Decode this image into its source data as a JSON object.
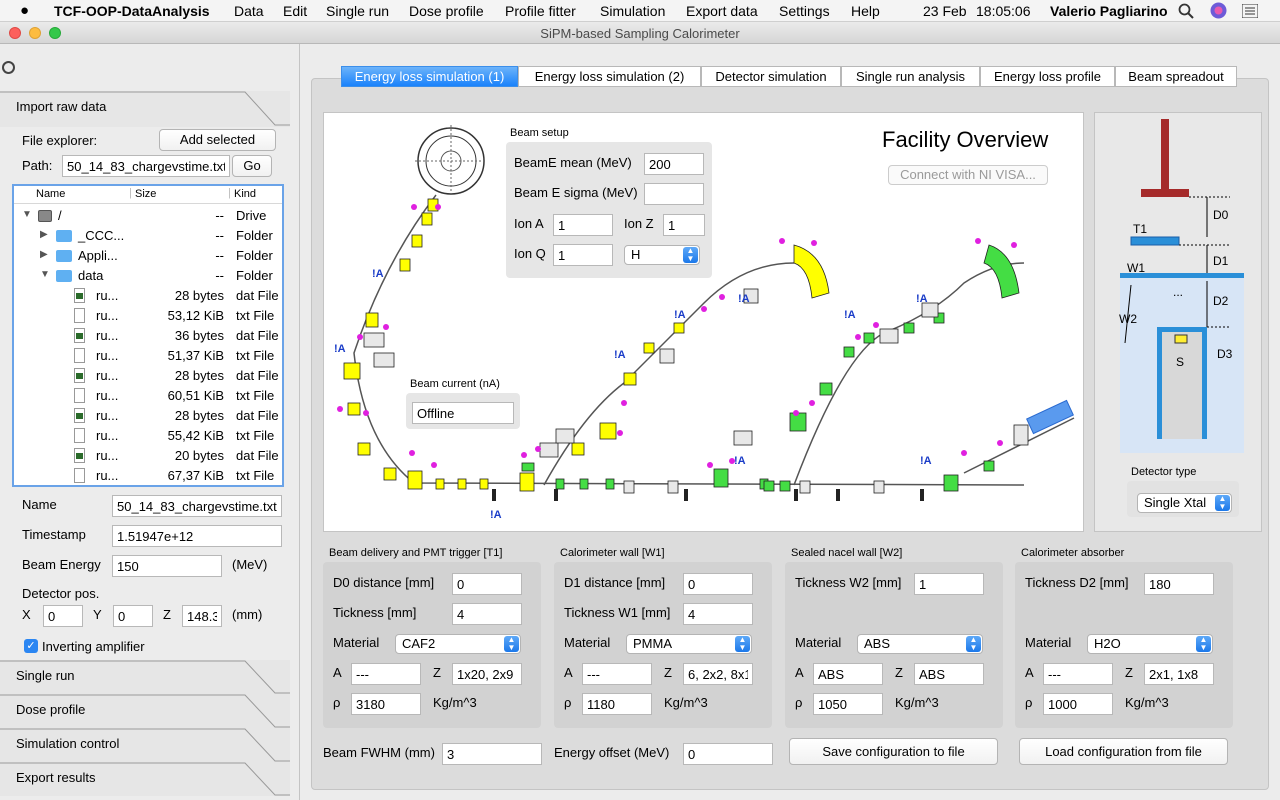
{
  "menubar": {
    "apple": "",
    "app": "TCF-OOP-DataAnalysis",
    "items": [
      "Data",
      "Edit",
      "Single run",
      "Dose profile",
      "Profile fitter",
      "Simulation",
      "Export data",
      "Settings",
      "Help"
    ],
    "date": "23 Feb",
    "time": "18:05:06",
    "user": "Valerio Pagliarino"
  },
  "window": {
    "title": "SiPM-based Sampling Calorimeter"
  },
  "left": {
    "import_title": "Import raw data",
    "file_explorer": "File explorer:",
    "add_selected": "Add selected",
    "path_label": "Path:",
    "path_value": "50_14_83_chargevstime.txt",
    "go": "Go",
    "tree_headers": [
      "Name",
      "Size",
      "Kind"
    ],
    "tree_rows": [
      {
        "name": "/",
        "size": "--",
        "kind": "Drive"
      },
      {
        "name": "_CCC...",
        "size": "--",
        "kind": "Folder"
      },
      {
        "name": "Appli...",
        "size": "--",
        "kind": "Folder"
      },
      {
        "name": "data",
        "size": "--",
        "kind": "Folder"
      },
      {
        "name": "ru...",
        "size": "28 bytes",
        "kind": "dat File"
      },
      {
        "name": "ru...",
        "size": "53,12 KiB",
        "kind": "txt File"
      },
      {
        "name": "ru...",
        "size": "36 bytes",
        "kind": "dat File"
      },
      {
        "name": "ru...",
        "size": "51,37 KiB",
        "kind": "txt File"
      },
      {
        "name": "ru...",
        "size": "28 bytes",
        "kind": "dat File"
      },
      {
        "name": "ru...",
        "size": "60,51 KiB",
        "kind": "txt File"
      },
      {
        "name": "ru...",
        "size": "28 bytes",
        "kind": "dat File"
      },
      {
        "name": "ru...",
        "size": "55,42 KiB",
        "kind": "txt File"
      },
      {
        "name": "ru...",
        "size": "20 bytes",
        "kind": "dat File"
      },
      {
        "name": "ru...",
        "size": "67,37 KiB",
        "kind": "txt File"
      }
    ],
    "name_label": "Name",
    "name_value": "50_14_83_chargevstime.txt",
    "timestamp_label": "Timestamp",
    "timestamp_value": "1.51947e+12",
    "energy_label": "Beam Energy",
    "energy_value": "150",
    "energy_unit": "(MeV)",
    "detpos_label": "Detector pos.",
    "x_label": "X",
    "x_value": "0",
    "y_label": "Y",
    "y_value": "0",
    "z_label": "Z",
    "z_value": "148.3",
    "pos_unit": "(mm)",
    "inverting": "Inverting amplifier",
    "sections": [
      "Single run",
      "Dose profile",
      "Simulation control",
      "Export results"
    ]
  },
  "tabs": [
    "Energy loss simulation (1)",
    "Energy loss simulation (2)",
    "Detector simulation",
    "Single run analysis",
    "Energy loss profile",
    "Beam spreadout"
  ],
  "facility": {
    "title": "Facility Overview",
    "connect": "Connect with NI VISA...",
    "beam_setup": "Beam setup",
    "beamE_mean_label": "BeamE mean (MeV)",
    "beamE_mean": "200",
    "beamE_sigma_label": "Beam E sigma (MeV)",
    "beamE_sigma": "",
    "ionA_label": "Ion A",
    "ionA": "1",
    "ionZ_label": "Ion Z",
    "ionZ": "1",
    "ionQ_label": "Ion Q",
    "ionQ": "1",
    "ion_select": "H",
    "current_label": "Beam current (nA)",
    "current_value": "Offline",
    "marker": "!A"
  },
  "detector": {
    "labels": [
      "D0",
      "T1",
      "W1",
      "D1",
      "...",
      "D2",
      "W2",
      "D3",
      "S"
    ],
    "type_label": "Detector type",
    "type_value": "Single Xtal",
    "colors": {
      "beam": "#a52a2a",
      "layer": "#2a8fd8",
      "water": "#d7e5f6"
    }
  },
  "groups": [
    {
      "title": "Beam delivery and PMT trigger [T1]",
      "f1_label": "D0 distance [mm]",
      "f1": "0",
      "f2_label": "Tickness [mm]",
      "f2": "4",
      "mat": "CAF2",
      "A": "---",
      "Z": "1x20, 2x9",
      "rho": "3180"
    },
    {
      "title": "Calorimeter wall [W1]",
      "f1_label": "D1 distance [mm]",
      "f1": "0",
      "f2_label": "Tickness W1 [mm]",
      "f2": "4",
      "mat": "PMMA",
      "A": "---",
      "Z": "6, 2x2, 8x1",
      "rho": "1180"
    },
    {
      "title": "Sealed nacel wall [W2]",
      "f1_label": "Tickness W2 [mm]",
      "f1": "1",
      "mat": "ABS",
      "A": "ABS",
      "Z": "ABS",
      "rho": "1050"
    },
    {
      "title": "Calorimeter absorber",
      "f1_label": "Tickness D2 [mm]",
      "f1": "180",
      "mat": "H2O",
      "A": "---",
      "Z": "2x1, 1x8",
      "rho": "1000"
    }
  ],
  "common": {
    "material": "Material",
    "A": "A",
    "Z": "Z",
    "rho": "ρ",
    "unit": "Kg/m^3"
  },
  "bottom": {
    "fwhm_label": "Beam FWHM (mm)",
    "fwhm": "3",
    "offset_label": "Energy offset (MeV)",
    "offset": "0",
    "save": "Save configuration to file",
    "load": "Load configuration from file"
  }
}
